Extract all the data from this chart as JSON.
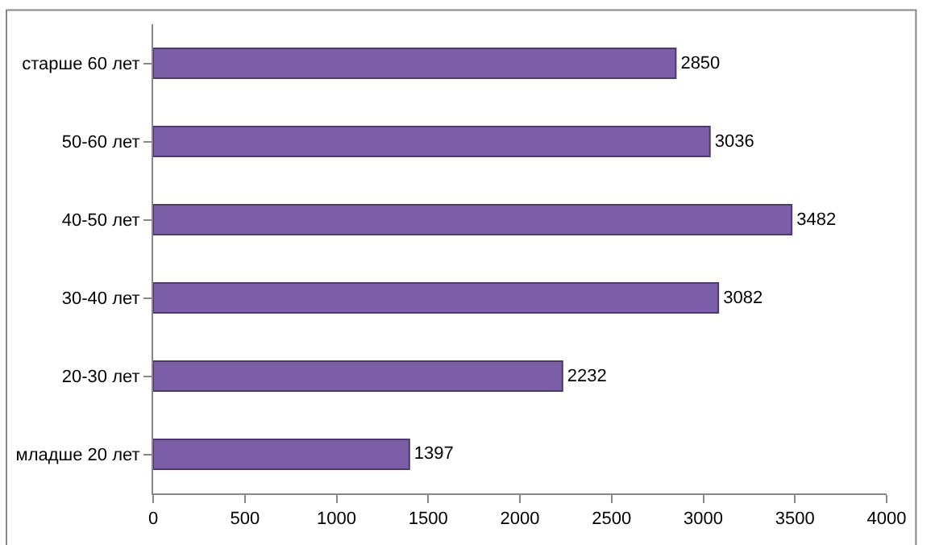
{
  "chart_data": {
    "type": "bar",
    "orientation": "horizontal",
    "categories": [
      "старше 60 лет",
      "50-60 лет",
      "40-50 лет",
      "30-40 лет",
      "20-30 лет",
      "младше 20 лет"
    ],
    "values": [
      2850,
      3036,
      3482,
      3082,
      2232,
      1397
    ],
    "color": "#7b5ea7",
    "xlim": [
      0,
      4000
    ],
    "xticks": [
      0,
      500,
      1000,
      1500,
      2000,
      2500,
      3000,
      3500,
      4000
    ],
    "grid": false,
    "legend": false,
    "data_labels": true
  }
}
